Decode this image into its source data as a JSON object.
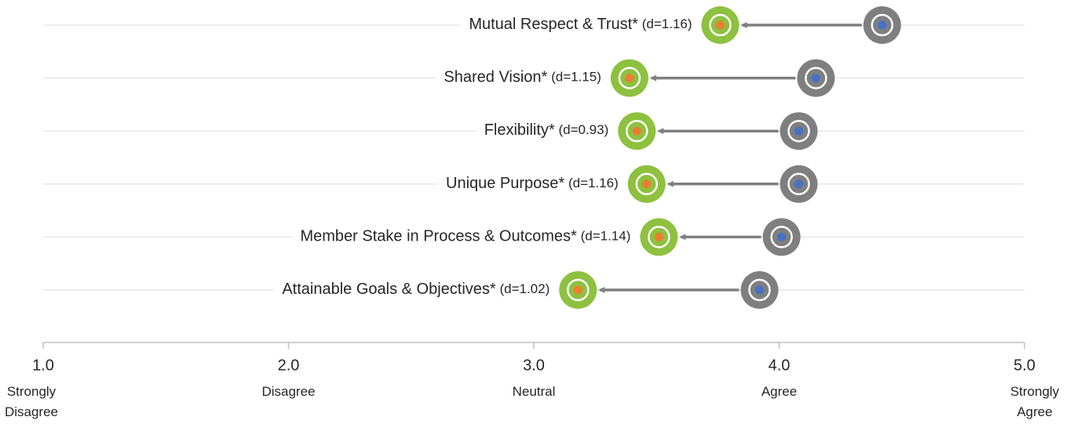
{
  "chart_data": {
    "type": "dumbbell",
    "categories": [
      "Mutual Respect & Trust*",
      "Shared Vision*",
      "Flexibility*",
      "Unique Purpose*",
      "Member Stake in Process & Outcomes*",
      "Attainable Goals & Objectives*"
    ],
    "effect_labels": [
      "(d=1.16)",
      "(d=1.15)",
      "(d=0.93)",
      "(d=1.16)",
      "(d=1.14)",
      "(d=1.02)"
    ],
    "series": [
      {
        "color": "#8dc13f",
        "dot_color": "#ed7d31",
        "values": [
          3.76,
          3.39,
          3.42,
          3.46,
          3.51,
          3.18
        ]
      },
      {
        "color": "#7f7f7f",
        "dot_color": "#4472c4",
        "values": [
          4.42,
          4.15,
          4.08,
          4.08,
          4.01,
          3.92
        ]
      }
    ],
    "xlim": [
      1,
      5
    ],
    "xticks": [
      {
        "value": 1,
        "label": "1.0"
      },
      {
        "value": 2,
        "label": "2.0"
      },
      {
        "value": 3,
        "label": "3.0"
      },
      {
        "value": 4,
        "label": "4.0"
      },
      {
        "value": 5,
        "label": "5.0"
      }
    ],
    "xtick_descriptions": [
      "Strongly Disagree",
      "Disagree",
      "Neutral",
      "Agree",
      "Strongly Agree"
    ],
    "grid": true
  }
}
